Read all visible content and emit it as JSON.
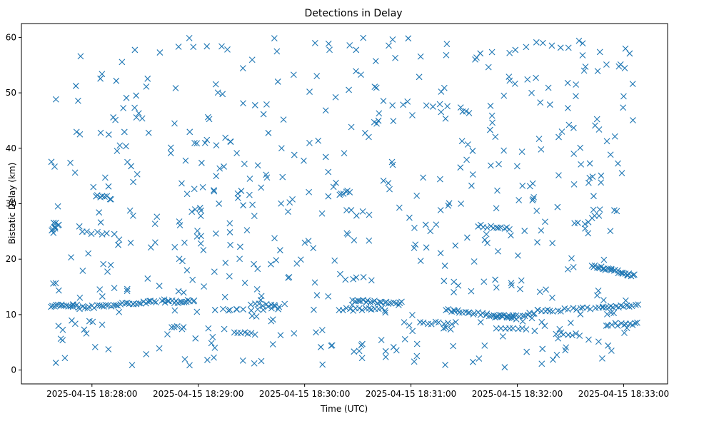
{
  "chart_data": {
    "type": "scatter",
    "title": "Detections in Delay",
    "xlabel": "Time (UTC)",
    "ylabel": "Bistatic Delay (km)",
    "marker": "x",
    "color": "#1f77b4",
    "xlim_seconds": [
      -39.8,
      324.8
    ],
    "ylim": [
      -2.5,
      62.5
    ],
    "xticks": [
      {
        "t": 0,
        "label": "2025-04-15 18:28:00"
      },
      {
        "t": 60,
        "label": "2025-04-15 18:29:00"
      },
      {
        "t": 120,
        "label": "2025-04-15 18:30:00"
      },
      {
        "t": 180,
        "label": "2025-04-15 18:31:00"
      },
      {
        "t": 240,
        "label": "2025-04-15 18:32:00"
      },
      {
        "t": 300,
        "label": "2025-04-15 18:33:00"
      }
    ],
    "yticks": [
      0,
      10,
      20,
      30,
      40,
      50,
      60
    ],
    "time_range_seconds": [
      -23,
      308
    ],
    "tracks": [
      {
        "t0": -23,
        "t1": -9,
        "d0": 11.6,
        "d1": 11.6,
        "n": 14
      },
      {
        "t0": -23,
        "t1": -19,
        "d0": 25.3,
        "d1": 26.2,
        "n": 7
      },
      {
        "t0": -8,
        "t1": 36,
        "d0": 11.2,
        "d1": 12.4,
        "n": 34
      },
      {
        "t0": 2,
        "t1": 11,
        "d0": 31.5,
        "d1": 31.0,
        "n": 8
      },
      {
        "t0": -5,
        "t1": 8,
        "d0": 24.8,
        "d1": 24.6,
        "n": 6
      },
      {
        "t0": 40,
        "t1": 58,
        "d0": 12.3,
        "d1": 12.4,
        "n": 16
      },
      {
        "t0": 45,
        "t1": 52,
        "d0": 7.8,
        "d1": 7.5,
        "n": 5
      },
      {
        "t0": 70,
        "t1": 105,
        "d0": 10.8,
        "d1": 11.0,
        "n": 10
      },
      {
        "t0": 90,
        "t1": 105,
        "d0": 12.0,
        "d1": 11.6,
        "n": 8
      },
      {
        "t0": 80,
        "t1": 92,
        "d0": 6.9,
        "d1": 6.6,
        "n": 7
      },
      {
        "t0": 140,
        "t1": 145,
        "d0": 31.8,
        "d1": 32.2,
        "n": 6
      },
      {
        "t0": 140,
        "t1": 163,
        "d0": 10.9,
        "d1": 11.0,
        "n": 14
      },
      {
        "t0": 147,
        "t1": 174,
        "d0": 12.6,
        "d1": 11.9,
        "n": 22
      },
      {
        "t0": 185,
        "t1": 205,
        "d0": 8.5,
        "d1": 8.4,
        "n": 10
      },
      {
        "t0": 200,
        "t1": 240,
        "d0": 10.8,
        "d1": 9.4,
        "n": 28
      },
      {
        "t0": 218,
        "t1": 236,
        "d0": 26.0,
        "d1": 25.5,
        "n": 12
      },
      {
        "t0": 228,
        "t1": 250,
        "d0": 9.5,
        "d1": 10.2,
        "n": 16
      },
      {
        "t0": 228,
        "t1": 245,
        "d0": 7.6,
        "d1": 7.3,
        "n": 8
      },
      {
        "t0": 252,
        "t1": 288,
        "d0": 10.6,
        "d1": 11.2,
        "n": 18
      },
      {
        "t0": 282,
        "t1": 306,
        "d0": 18.8,
        "d1": 17.0,
        "n": 28
      },
      {
        "t0": 288,
        "t1": 308,
        "d0": 11.2,
        "d1": 11.7,
        "n": 14
      },
      {
        "t0": 290,
        "t1": 308,
        "d0": 8.2,
        "d1": 8.3,
        "n": 12
      },
      {
        "t0": 278,
        "t1": 286,
        "d0": 26.5,
        "d1": 28.0,
        "n": 5
      },
      {
        "t0": 262,
        "t1": 275,
        "d0": 6.7,
        "d1": 6.4,
        "n": 7
      }
    ],
    "noise_points": 560,
    "noise_seed": 20250415
  }
}
